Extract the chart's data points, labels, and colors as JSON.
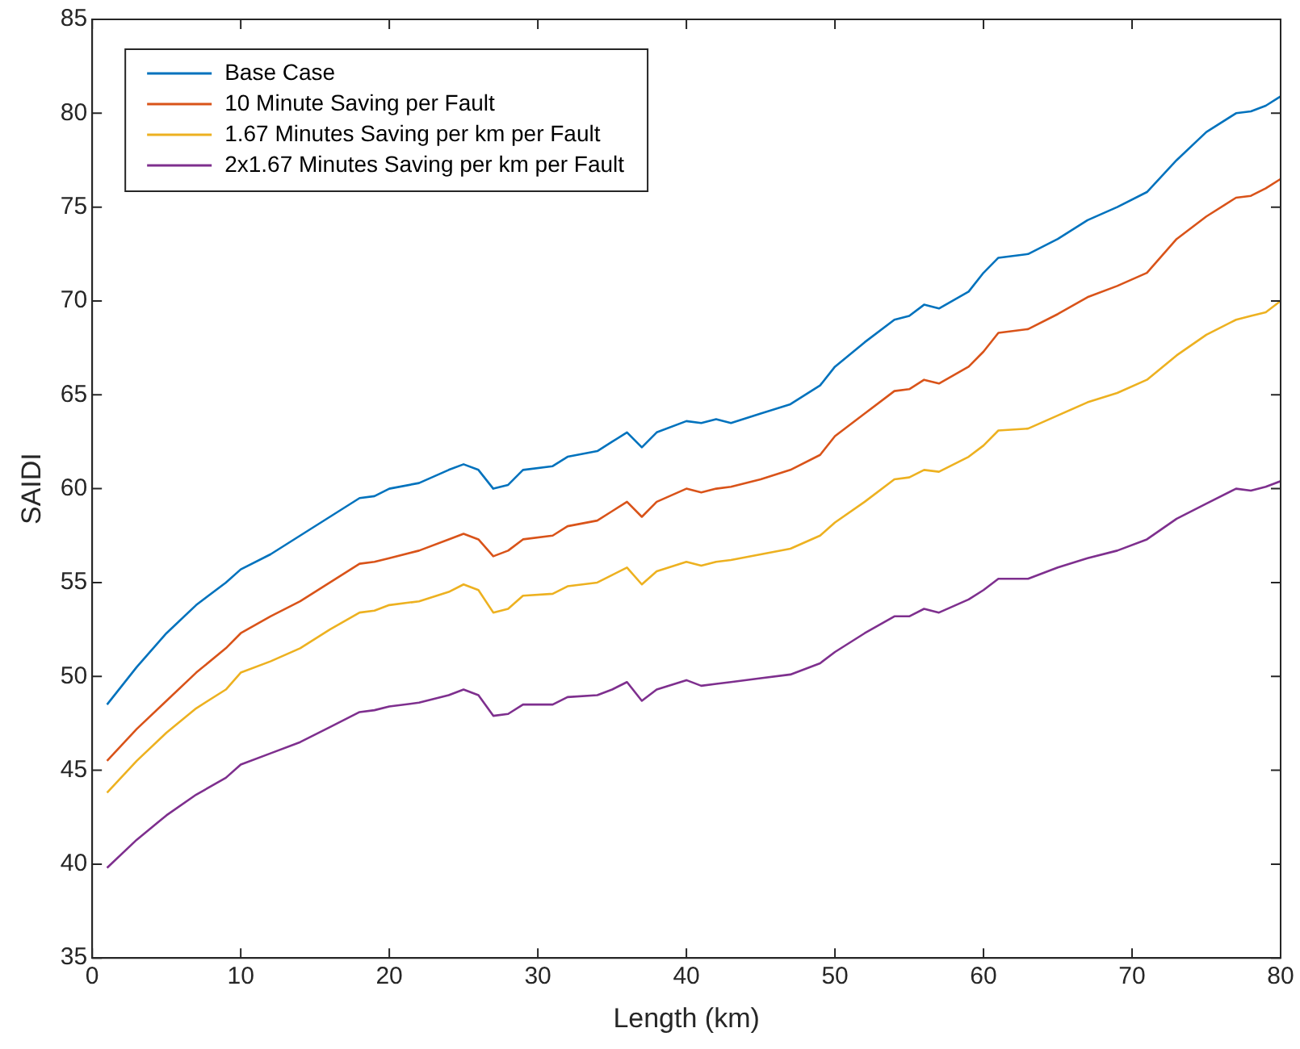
{
  "chart_data": {
    "type": "line",
    "xlabel": "Length (km)",
    "ylabel": "SAIDI",
    "x": [
      1,
      3,
      5,
      7,
      9,
      10,
      12,
      14,
      16,
      18,
      19,
      20,
      22,
      24,
      25,
      26,
      27,
      28,
      29,
      31,
      32,
      34,
      35,
      36,
      37,
      38,
      40,
      41,
      42,
      43,
      45,
      47,
      49,
      50,
      52,
      54,
      55,
      56,
      57,
      59,
      60,
      61,
      63,
      65,
      67,
      69,
      71,
      73,
      75,
      77,
      78,
      79,
      80
    ],
    "series": [
      {
        "name": "Base Case",
        "color": "#0072bd",
        "values": [
          48.5,
          50.5,
          52.3,
          53.8,
          55,
          55.7,
          56.5,
          57.5,
          58.5,
          59.5,
          59.6,
          60,
          60.3,
          61,
          61.3,
          61,
          60,
          60.2,
          61,
          61.2,
          61.7,
          62,
          62.5,
          63,
          62.2,
          63,
          63.6,
          63.5,
          63.7,
          63.5,
          64,
          64.5,
          65.5,
          66.5,
          67.8,
          69,
          69.2,
          69.8,
          69.6,
          70.5,
          71.5,
          72.3,
          72.5,
          73.3,
          74.3,
          75,
          75.8,
          77.5,
          79,
          80,
          80.1,
          80.4,
          80.9
        ]
      },
      {
        "name": "10 Minute Saving per Fault",
        "color": "#d95319",
        "values": [
          45.5,
          47.2,
          48.7,
          50.2,
          51.5,
          52.3,
          53.2,
          54,
          55,
          56,
          56.1,
          56.3,
          56.7,
          57.3,
          57.6,
          57.3,
          56.4,
          56.7,
          57.3,
          57.5,
          58,
          58.3,
          58.8,
          59.3,
          58.5,
          59.3,
          60,
          59.8,
          60,
          60.1,
          60.5,
          61,
          61.8,
          62.8,
          64,
          65.2,
          65.3,
          65.8,
          65.6,
          66.5,
          67.3,
          68.3,
          68.5,
          69.3,
          70.2,
          70.8,
          71.5,
          73.3,
          74.5,
          75.5,
          75.6,
          76,
          76.5
        ]
      },
      {
        "name": "1.67 Minutes Saving per km per Fault",
        "color": "#edb120",
        "values": [
          43.8,
          45.5,
          47,
          48.3,
          49.3,
          50.2,
          50.8,
          51.5,
          52.5,
          53.4,
          53.5,
          53.8,
          54,
          54.5,
          54.9,
          54.6,
          53.4,
          53.6,
          54.3,
          54.4,
          54.8,
          55,
          55.4,
          55.8,
          54.9,
          55.6,
          56.1,
          55.9,
          56.1,
          56.2,
          56.5,
          56.8,
          57.5,
          58.2,
          59.3,
          60.5,
          60.6,
          61,
          60.9,
          61.7,
          62.3,
          63.1,
          63.2,
          63.9,
          64.6,
          65.1,
          65.8,
          67.1,
          68.2,
          69,
          69.2,
          69.4,
          70
        ]
      },
      {
        "name": "2x1.67 Minutes Saving per km per Fault",
        "color": "#7e2f8e",
        "values": [
          39.8,
          41.3,
          42.6,
          43.7,
          44.6,
          45.3,
          45.9,
          46.5,
          47.3,
          48.1,
          48.2,
          48.4,
          48.6,
          49,
          49.3,
          49,
          47.9,
          48,
          48.5,
          48.5,
          48.9,
          49,
          49.3,
          49.7,
          48.7,
          49.3,
          49.8,
          49.5,
          49.6,
          49.7,
          49.9,
          50.1,
          50.7,
          51.3,
          52.3,
          53.2,
          53.2,
          53.6,
          53.4,
          54.1,
          54.6,
          55.2,
          55.2,
          55.8,
          56.3,
          56.7,
          57.3,
          58.4,
          59.2,
          60,
          59.9,
          60.1,
          60.4
        ]
      }
    ],
    "xlim": [
      0,
      80
    ],
    "xticks": [
      0,
      10,
      20,
      30,
      40,
      50,
      60,
      70,
      80
    ],
    "ylim": [
      35,
      85
    ],
    "yticks": [
      35,
      40,
      45,
      50,
      55,
      60,
      65,
      70,
      75,
      80,
      85
    ],
    "grid": false,
    "legend": "top left",
    "marker": "none",
    "line_style": "solid"
  }
}
